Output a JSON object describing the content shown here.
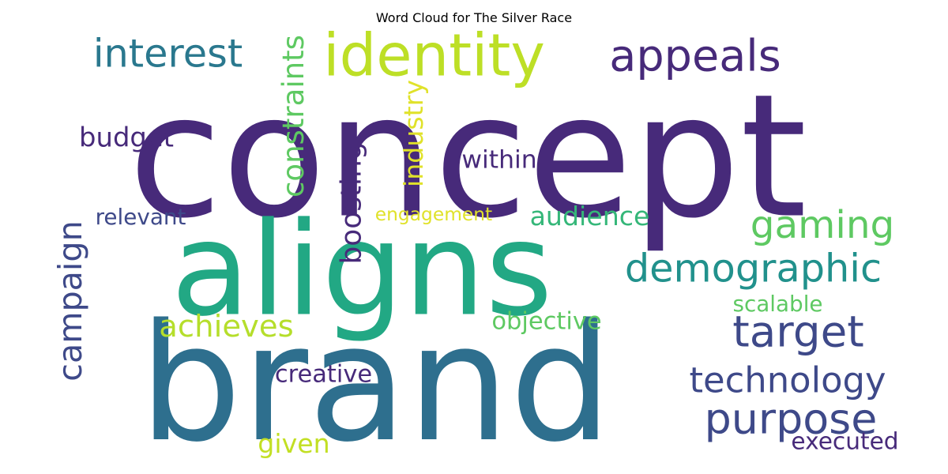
{
  "chart_data": {
    "type": "wordcloud",
    "title": "Word Cloud for The Silver Race",
    "words": [
      {
        "text": "concept",
        "color": "#472a7a"
      },
      {
        "text": "aligns",
        "color": "#22a884"
      },
      {
        "text": "brand",
        "color": "#2e6f8e"
      },
      {
        "text": "identity",
        "color": "#bddf26"
      },
      {
        "text": "appeals",
        "color": "#472a7a"
      },
      {
        "text": "interest",
        "color": "#2a788e"
      },
      {
        "text": "constraints",
        "color": "#5ec962"
      },
      {
        "text": "industry",
        "color": "#e0e22a"
      },
      {
        "text": "budget",
        "color": "#472a7a"
      },
      {
        "text": "within",
        "color": "#472a7a"
      },
      {
        "text": "boosting",
        "color": "#472a7a"
      },
      {
        "text": "relevant",
        "color": "#3e4989"
      },
      {
        "text": "engagement",
        "color": "#e0e22a"
      },
      {
        "text": "audience",
        "color": "#35b779"
      },
      {
        "text": "gaming",
        "color": "#5ec962"
      },
      {
        "text": "campaign",
        "color": "#3e4989"
      },
      {
        "text": "demographic",
        "color": "#21918c"
      },
      {
        "text": "target",
        "color": "#3e4989"
      },
      {
        "text": "scalable",
        "color": "#5ec962"
      },
      {
        "text": "achieves",
        "color": "#b5de2b"
      },
      {
        "text": "objective",
        "color": "#5ec962"
      },
      {
        "text": "creative",
        "color": "#472a7a"
      },
      {
        "text": "technology",
        "color": "#3e4989"
      },
      {
        "text": "purpose",
        "color": "#3e4989"
      },
      {
        "text": "given",
        "color": "#c2df23"
      },
      {
        "text": "executed",
        "color": "#472a7a"
      }
    ]
  }
}
